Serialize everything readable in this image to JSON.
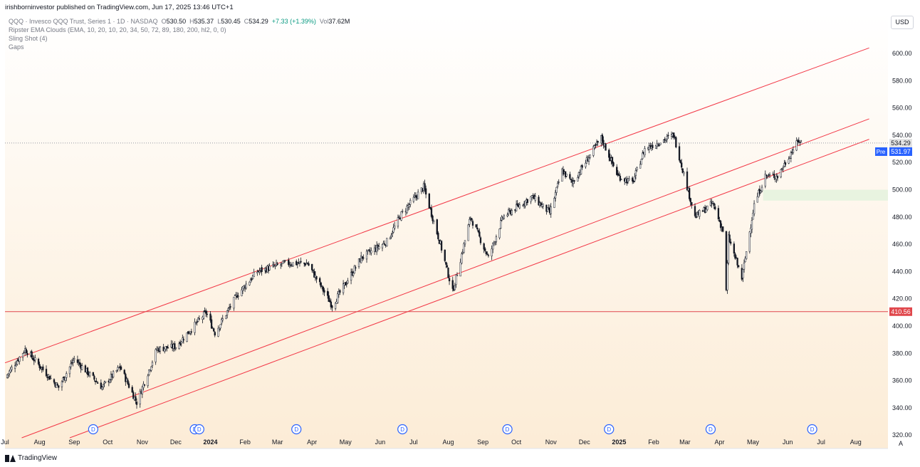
{
  "publisher_line": "irishborninvestor published on TradingView.com, Jun 17, 2025 13:46 UTC+1",
  "legend": {
    "symbol": "QQQ · Invesco QQQ Trust, Series 1 · 1D · NASDAQ",
    "o_label": "O",
    "o": "530.50",
    "h_label": "H",
    "h": "535.37",
    "l_label": "L",
    "l": "530.45",
    "c_label": "C",
    "c": "534.29",
    "change": "+7.33 (+1.39%)",
    "vol_label": "Vol",
    "vol": "37.62M",
    "ind1": "Ripster EMA Clouds (EMA, 10, 20, 10, 20, 34, 50, 72, 89, 180, 200, hl2, 0, 0)",
    "ind2": "Sling Shot (4)",
    "ind3": "Gaps"
  },
  "currency": "USD",
  "price_labels": {
    "last": "534.29",
    "pre_tag": "Pre",
    "pre": "531.97",
    "support": "410.56"
  },
  "footer": {
    "brand": "TradingView"
  },
  "auto_label": "A",
  "colors": {
    "channel": "#f23645",
    "support": "#e0474c",
    "up": "#131722",
    "down": "#131722",
    "gap_zone": "#e8f3e0",
    "dividend": "#2962ff"
  },
  "chart_data": {
    "type": "candlestick",
    "ylim": [
      320,
      610
    ],
    "y_ticks": [
      320,
      340,
      360,
      380,
      400,
      420,
      440,
      460,
      480,
      500,
      520,
      540,
      560,
      580,
      600
    ],
    "y_tick_labels": [
      "320.00",
      "340.00",
      "360.00",
      "380.00",
      "400.00",
      "420.00",
      "440.00",
      "460.00",
      "480.00",
      "500.00",
      "520.00",
      "540.00",
      "560.00",
      "580.00",
      "600.00"
    ],
    "x_labels": [
      "Jul",
      "Aug",
      "Sep",
      "Oct",
      "Nov",
      "Dec",
      "2024",
      "Feb",
      "Mar",
      "Apr",
      "May",
      "Jun",
      "Jul",
      "Aug",
      "Sep",
      "Oct",
      "Nov",
      "Dec",
      "2025",
      "Feb",
      "Mar",
      "Apr",
      "May",
      "Jun",
      "Jul",
      "Aug"
    ],
    "x_label_dates": [
      "2023-07-01",
      "2023-08-01",
      "2023-09-01",
      "2023-10-01",
      "2023-11-01",
      "2023-12-01",
      "2024-01-01",
      "2024-02-01",
      "2024-03-01",
      "2024-04-01",
      "2024-05-01",
      "2024-06-01",
      "2024-07-01",
      "2024-08-01",
      "2024-09-01",
      "2024-10-01",
      "2024-11-01",
      "2024-12-01",
      "2025-01-01",
      "2025-02-01",
      "2025-03-01",
      "2025-04-01",
      "2025-05-01",
      "2025-06-01",
      "2025-07-01",
      "2025-08-01"
    ],
    "x_range": [
      "2023-07-01",
      "2025-08-19"
    ],
    "key_points": [
      {
        "date": "2023-07-01",
        "close": 362
      },
      {
        "date": "2023-07-19",
        "close": 383
      },
      {
        "date": "2023-08-18",
        "close": 355
      },
      {
        "date": "2023-09-01",
        "close": 376
      },
      {
        "date": "2023-09-26",
        "close": 355
      },
      {
        "date": "2023-10-12",
        "close": 370
      },
      {
        "date": "2023-10-27",
        "close": 344
      },
      {
        "date": "2023-11-14",
        "close": 383
      },
      {
        "date": "2023-12-01",
        "close": 385
      },
      {
        "date": "2023-12-28",
        "close": 410
      },
      {
        "date": "2024-01-05",
        "close": 395
      },
      {
        "date": "2024-01-25",
        "close": 423
      },
      {
        "date": "2024-02-12",
        "close": 440
      },
      {
        "date": "2024-03-08",
        "close": 446
      },
      {
        "date": "2024-03-28",
        "close": 446
      },
      {
        "date": "2024-04-19",
        "close": 415
      },
      {
        "date": "2024-05-15",
        "close": 450
      },
      {
        "date": "2024-06-07",
        "close": 462
      },
      {
        "date": "2024-06-20",
        "close": 482
      },
      {
        "date": "2024-07-10",
        "close": 502
      },
      {
        "date": "2024-07-25",
        "close": 460
      },
      {
        "date": "2024-08-05",
        "close": 425
      },
      {
        "date": "2024-08-21",
        "close": 480
      },
      {
        "date": "2024-09-06",
        "close": 450
      },
      {
        "date": "2024-09-19",
        "close": 480
      },
      {
        "date": "2024-10-15",
        "close": 495
      },
      {
        "date": "2024-10-31",
        "close": 483
      },
      {
        "date": "2024-11-11",
        "close": 514
      },
      {
        "date": "2024-11-20",
        "close": 505
      },
      {
        "date": "2024-12-16",
        "close": 538
      },
      {
        "date": "2024-12-31",
        "close": 510
      },
      {
        "date": "2025-01-13",
        "close": 505
      },
      {
        "date": "2025-01-24",
        "close": 530
      },
      {
        "date": "2025-02-19",
        "close": 540
      },
      {
        "date": "2025-03-10",
        "close": 480
      },
      {
        "date": "2025-03-26",
        "close": 490
      },
      {
        "date": "2025-04-04",
        "close": 470
      },
      {
        "date": "2025-04-07",
        "close": 425
      },
      {
        "date": "2025-04-09",
        "close": 465
      },
      {
        "date": "2025-04-21",
        "close": 435
      },
      {
        "date": "2025-05-02",
        "close": 489
      },
      {
        "date": "2025-05-12",
        "close": 510
      },
      {
        "date": "2025-05-23",
        "close": 510
      },
      {
        "date": "2025-06-06",
        "close": 530
      },
      {
        "date": "2025-06-11",
        "close": 536
      },
      {
        "date": "2025-06-16",
        "close": 534.29
      }
    ],
    "channel_lines": [
      {
        "from": {
          "date": "2023-07-01",
          "price": 373
        },
        "to": {
          "date": "2025-08-13",
          "price": 604
        }
      },
      {
        "from": {
          "date": "2023-07-16",
          "price": 318
        },
        "to": {
          "date": "2025-08-13",
          "price": 552
        }
      },
      {
        "from": {
          "date": "2023-08-28",
          "price": 318
        },
        "to": {
          "date": "2025-08-13",
          "price": 537
        }
      }
    ],
    "horizontal_levels": [
      {
        "price": 410.56,
        "label": "410.56"
      },
      {
        "price": 534.29,
        "style": "dotted"
      }
    ],
    "gap_zone": {
      "from_date": "2025-05-10",
      "price_low": 492,
      "price_high": 500
    },
    "dividend_markers": [
      "2023-09-18",
      "2023-12-18",
      "2023-12-22",
      "2024-03-18",
      "2024-06-21",
      "2024-09-23",
      "2024-12-23",
      "2025-03-24",
      "2025-06-23"
    ],
    "dividend_label": "D"
  }
}
